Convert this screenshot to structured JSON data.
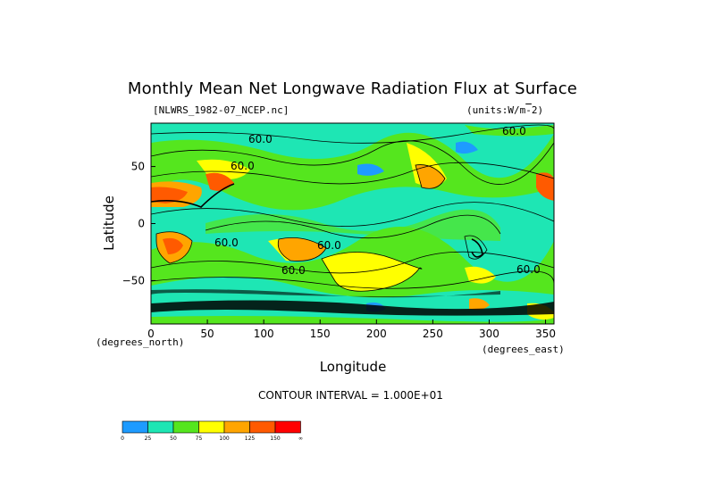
{
  "title": "Monthly Mean Net Longwave Radiation Flux at Surface",
  "file_label": "[NLWRS_1982-07_NCEP.nc]",
  "units_label": "(units:W/m^-2)",
  "contour_interval": "CONTOUR INTERVAL = 1.000E+01",
  "chart_data": {
    "type": "heatmap",
    "title": "Monthly Mean Net Longwave Radiation Flux at Surface",
    "xlabel": "Longitude",
    "ylabel": "Latitude",
    "x_unit_label": "(degrees_east)",
    "y_unit_label": "(degrees_north)",
    "xlim": [
      0,
      357.5
    ],
    "ylim": [
      -88,
      88
    ],
    "x_ticks": [
      0,
      50,
      100,
      150,
      200,
      250,
      300,
      350
    ],
    "y_ticks": [
      50,
      0,
      -50
    ],
    "contour_labels": [
      "60.0",
      "60.0",
      "60.0",
      "60.0",
      "60.0",
      "60.0",
      "60.0"
    ],
    "colorbar": {
      "levels": [
        "0",
        "25",
        "50",
        "75",
        "100",
        "125",
        "150",
        "∞"
      ],
      "colors": [
        "#1e9bff",
        "#1ee6b4",
        "#55e61e",
        "#ffff00",
        "#ffa500",
        "#ff5a00",
        "#ff0000"
      ]
    }
  }
}
